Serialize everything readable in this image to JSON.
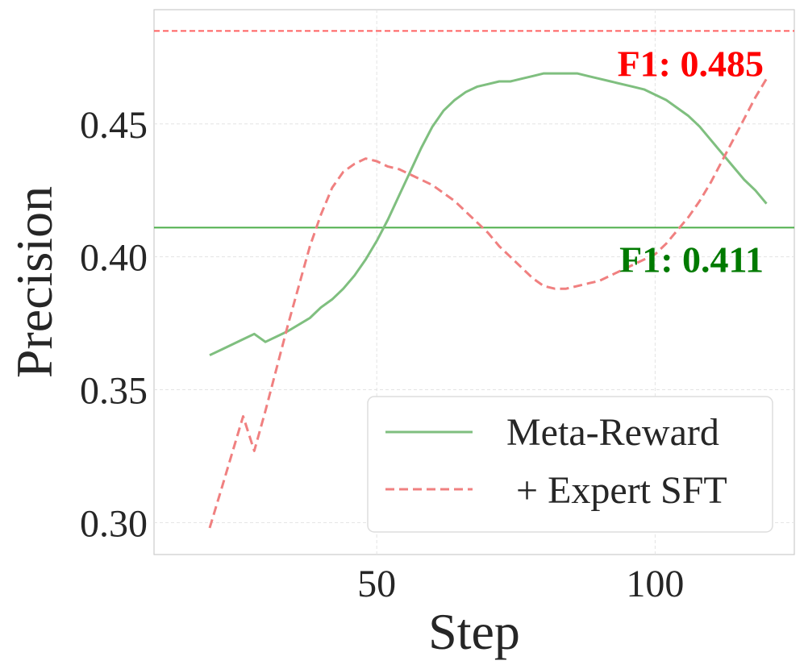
{
  "chart_data": {
    "type": "line",
    "title": "",
    "xlabel": "Step",
    "ylabel": "Precision",
    "xlim": [
      10,
      125
    ],
    "ylim": [
      0.288,
      0.493
    ],
    "xticks": [
      50,
      100
    ],
    "xtick_labels": [
      "50",
      "100"
    ],
    "yticks": [
      0.3,
      0.35,
      0.4,
      0.45
    ],
    "ytick_labels": [
      "0.30",
      "0.35",
      "0.40",
      "0.45"
    ],
    "grid": true,
    "legend_position": "lower-right",
    "series": [
      {
        "name": "Meta-Reward",
        "color": "#7fbf7f",
        "style": "solid",
        "x": [
          20,
          22,
          24,
          26,
          28,
          30,
          34,
          38,
          40,
          42,
          44,
          46,
          48,
          50,
          52,
          54,
          56,
          58,
          60,
          62,
          64,
          66,
          68,
          70,
          72,
          74,
          76,
          78,
          80,
          82,
          84,
          86,
          88,
          90,
          92,
          94,
          96,
          98,
          100,
          102,
          104,
          106,
          108,
          110,
          112,
          114,
          116,
          118,
          120
        ],
        "y": [
          0.363,
          0.365,
          0.367,
          0.369,
          0.371,
          0.368,
          0.372,
          0.377,
          0.381,
          0.384,
          0.388,
          0.393,
          0.399,
          0.406,
          0.414,
          0.423,
          0.432,
          0.441,
          0.449,
          0.455,
          0.459,
          0.462,
          0.464,
          0.465,
          0.466,
          0.466,
          0.467,
          0.468,
          0.469,
          0.469,
          0.469,
          0.469,
          0.468,
          0.467,
          0.466,
          0.465,
          0.464,
          0.463,
          0.461,
          0.459,
          0.456,
          0.453,
          0.449,
          0.444,
          0.439,
          0.434,
          0.429,
          0.425,
          0.42
        ]
      },
      {
        "name": "+ Expert SFT",
        "color": "#f08080",
        "style": "dashed",
        "x": [
          20,
          22,
          24,
          26,
          28,
          30,
          32,
          34,
          36,
          38,
          40,
          42,
          44,
          46,
          48,
          50,
          52,
          54,
          56,
          58,
          60,
          62,
          64,
          66,
          68,
          70,
          72,
          74,
          76,
          78,
          80,
          82,
          84,
          86,
          88,
          90,
          92,
          94,
          96,
          98,
          100,
          102,
          104,
          106,
          108,
          110,
          112,
          114,
          116,
          118,
          120
        ],
        "y": [
          0.298,
          0.312,
          0.326,
          0.34,
          0.327,
          0.342,
          0.358,
          0.374,
          0.389,
          0.404,
          0.416,
          0.426,
          0.432,
          0.435,
          0.437,
          0.436,
          0.434,
          0.433,
          0.431,
          0.429,
          0.427,
          0.424,
          0.421,
          0.417,
          0.413,
          0.409,
          0.404,
          0.4,
          0.396,
          0.392,
          0.389,
          0.388,
          0.388,
          0.389,
          0.39,
          0.391,
          0.393,
          0.395,
          0.397,
          0.399,
          0.401,
          0.405,
          0.41,
          0.415,
          0.421,
          0.428,
          0.436,
          0.444,
          0.452,
          0.46,
          0.467
        ]
      }
    ],
    "reference_lines": [
      {
        "y": 0.485,
        "color": "#ff6060",
        "style": "dashed",
        "label": "F1: 0.485",
        "label_color": "#ff0000"
      },
      {
        "y": 0.411,
        "color": "#4daf4a",
        "style": "solid",
        "label": "F1: 0.411",
        "label_color": "#007a00"
      }
    ]
  }
}
